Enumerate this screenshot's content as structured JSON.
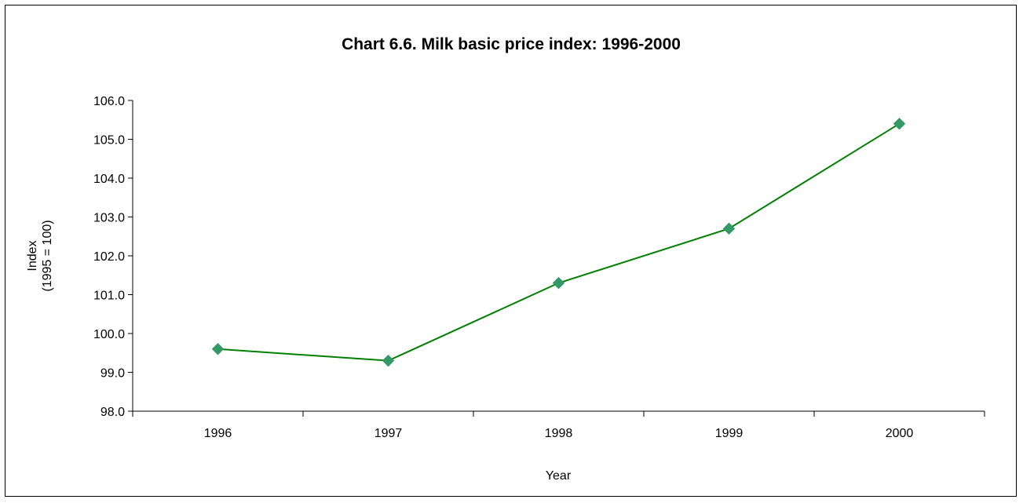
{
  "chart_data": {
    "type": "line",
    "title": "Chart 6.6.  Milk basic price index: 1996-2000",
    "xlabel": "Year",
    "ylabel": [
      "Index",
      "(1995 = 100)"
    ],
    "categories": [
      "1996",
      "1997",
      "1998",
      "1999",
      "2000"
    ],
    "series": [
      {
        "name": "",
        "values": [
          99.6,
          99.3,
          101.3,
          102.7,
          105.4
        ],
        "color": "#008000",
        "marker_color": "#339966",
        "marker": "diamond"
      }
    ],
    "ylim": [
      98.0,
      106.0
    ],
    "yticks": [
      "98.0",
      "99.0",
      "100.0",
      "101.0",
      "102.0",
      "103.0",
      "104.0",
      "105.0",
      "106.0"
    ],
    "grid": false,
    "legend": "none"
  }
}
